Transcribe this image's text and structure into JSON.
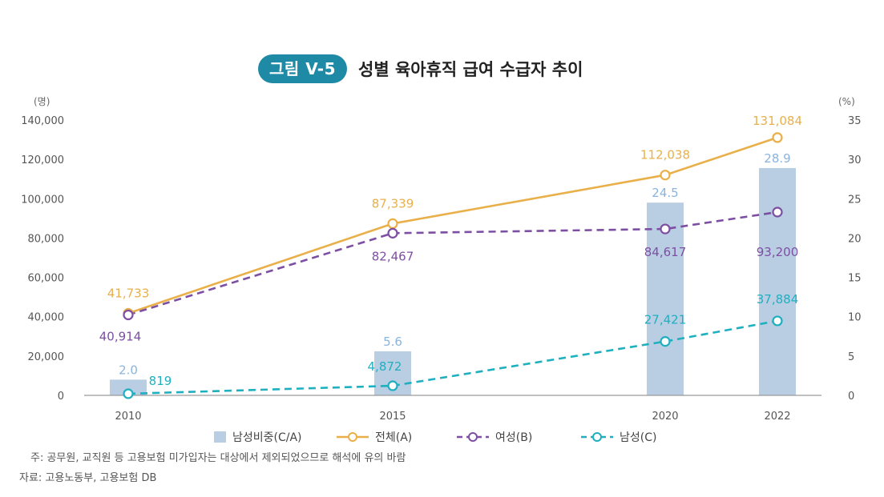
{
  "figure": {
    "badge": "그림 V-5",
    "title": "성별 육아휴직 급여 수급자 추이"
  },
  "chart_data": {
    "type": "bar+line",
    "title": "성별 육아휴직 급여 수급자 추이",
    "x": [
      2010,
      2015,
      2020,
      2022
    ],
    "x_labels": [
      "2010",
      "2015",
      "2020",
      "2022"
    ],
    "y_left": {
      "unit": "(명)",
      "range": [
        0,
        140000
      ],
      "ticks": [
        "0",
        "20,000",
        "40,000",
        "60,000",
        "80,000",
        "100,000",
        "120,000",
        "140,000"
      ]
    },
    "y_right": {
      "unit": "(%)",
      "range": [
        0,
        35
      ],
      "ticks": [
        "0",
        "5",
        "10",
        "15",
        "20",
        "25",
        "30",
        "35"
      ]
    },
    "bars": {
      "name": "남성비중(C/A)",
      "axis": "right",
      "values": [
        2.0,
        5.6,
        24.5,
        28.9
      ],
      "labels": [
        "2.0",
        "5.6",
        "24.5",
        "28.9"
      ],
      "color": "#b9cde3"
    },
    "series": [
      {
        "name": "전체(A)",
        "axis": "left",
        "style": "solid",
        "color": "#e9b04a",
        "values": [
          41733,
          87339,
          112038,
          131084
        ],
        "labels": [
          "41,733",
          "87,339",
          "112,038",
          "131,084"
        ]
      },
      {
        "name": "여성(B)",
        "axis": "left",
        "style": "dashed",
        "color": "#7d4fa3",
        "values": [
          40914,
          82467,
          84617,
          93200
        ],
        "labels": [
          "40,914",
          "82,467",
          "84,617",
          "93,200"
        ]
      },
      {
        "name": "남성(C)",
        "axis": "left",
        "style": "dashed",
        "color": "#1fb0c0",
        "values": [
          819,
          4872,
          27421,
          37884
        ],
        "labels": [
          "819",
          "4,872",
          "27,421",
          "37,884"
        ]
      }
    ],
    "legend": [
      "남성비중(C/A)",
      "전체(A)",
      "여성(B)",
      "남성(C)"
    ],
    "legend_position": "bottom"
  },
  "notes": {
    "note": "주: 공무원, 교직원 등 고용보험 미가입자는 대상에서 제외되었으므로 해석에 유의 바람",
    "source": "자료: 고용노동부, 고용보험 DB"
  }
}
